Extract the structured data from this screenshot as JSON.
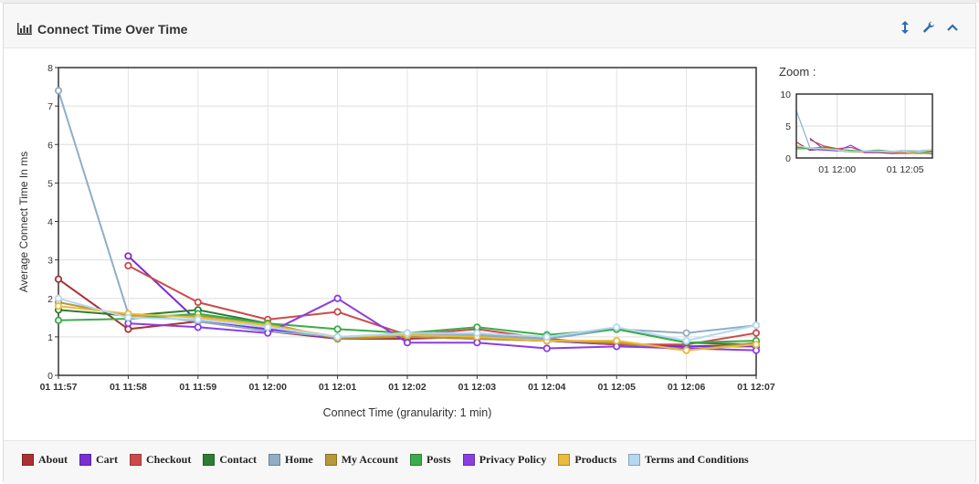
{
  "panel": {
    "title": "Connect Time Over Time",
    "zoom_label": "Zoom :",
    "icons": [
      "bar-chart-icon",
      "resize-vertical-icon",
      "wrench-icon",
      "chevron-up-icon"
    ]
  },
  "colors": {
    "About": "#a83232",
    "Cart": "#7a2fd1",
    "Checkout": "#cc4a4a",
    "Contact": "#2e7d32",
    "Home": "#8faec6",
    "My Account": "#b8963a",
    "Posts": "#3cab4a",
    "Privacy Policy": "#8b3ee0",
    "Products": "#e8bb3a",
    "Terms and Conditions": "#b5d8f2"
  },
  "chart_data": {
    "type": "line",
    "xlabel": "Connect Time (granularity: 1 min)",
    "ylabel": "Average Connect Time In ms",
    "ylim": [
      0,
      8
    ],
    "yticks": [
      0,
      1,
      2,
      3,
      4,
      5,
      6,
      7,
      8
    ],
    "grid": true,
    "categories": [
      "01 11:57",
      "01 11:58",
      "01 11:59",
      "01 12:00",
      "01 12:01",
      "01 12:02",
      "01 12:03",
      "01 12:04",
      "01 12:05",
      "01 12:06",
      "01 12:07"
    ],
    "legend_position": "bottom",
    "series": [
      {
        "name": "About",
        "values": [
          2.5,
          1.2,
          1.4,
          1.15,
          0.95,
          0.95,
          1.0,
          0.9,
          0.8,
          0.75,
          0.8
        ]
      },
      {
        "name": "Cart",
        "values": [
          null,
          3.1,
          1.4,
          1.2,
          0.95,
          1.0,
          0.95,
          0.9,
          0.8,
          0.75,
          0.75
        ]
      },
      {
        "name": "Checkout",
        "values": [
          null,
          2.85,
          1.9,
          1.45,
          1.65,
          1.05,
          1.2,
          0.95,
          0.8,
          0.8,
          1.1
        ]
      },
      {
        "name": "Contact",
        "values": [
          1.7,
          1.55,
          1.7,
          1.35,
          0.95,
          1.05,
          1.05,
          0.95,
          1.2,
          0.85,
          0.8
        ]
      },
      {
        "name": "Home",
        "values": [
          7.4,
          1.6,
          1.4,
          1.15,
          1.0,
          1.05,
          1.05,
          0.95,
          1.2,
          1.1,
          1.3
        ]
      },
      {
        "name": "My Account",
        "values": [
          1.9,
          1.55,
          1.55,
          1.35,
          0.95,
          1.0,
          0.95,
          0.9,
          0.85,
          0.65,
          0.85
        ]
      },
      {
        "name": "Posts",
        "values": [
          1.43,
          1.47,
          1.6,
          1.35,
          1.2,
          1.1,
          1.25,
          1.05,
          1.2,
          0.85,
          0.9
        ]
      },
      {
        "name": "Privacy Policy",
        "values": [
          null,
          1.35,
          1.25,
          1.1,
          2.0,
          0.85,
          0.85,
          0.7,
          0.75,
          0.7,
          0.65
        ]
      },
      {
        "name": "Products",
        "values": [
          1.8,
          1.6,
          1.5,
          1.3,
          1.0,
          1.05,
          1.0,
          0.9,
          0.9,
          0.65,
          0.8
        ]
      },
      {
        "name": "Terms and Conditions",
        "values": [
          2.0,
          1.5,
          1.45,
          1.25,
          1.0,
          1.1,
          1.1,
          1.0,
          1.25,
          0.9,
          1.3
        ]
      }
    ],
    "zoom": {
      "ylim": [
        0,
        10
      ],
      "yticks": [
        0,
        5,
        10
      ],
      "xticks": [
        "01 12:00",
        "01 12:05"
      ]
    }
  }
}
